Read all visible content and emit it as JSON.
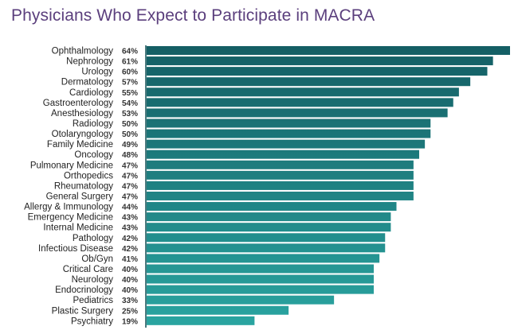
{
  "title": "Physicians Who Expect to Participate in MACRA",
  "chart_data": {
    "type": "bar",
    "orientation": "horizontal",
    "title": "Physicians Who Expect to Participate in MACRA",
    "xlabel": "",
    "ylabel": "",
    "categories": [
      "Ophthalmology",
      "Nephrology",
      "Urology",
      "Dermatology",
      "Cardiology",
      "Gastroenterology",
      "Anesthesiology",
      "Radiology",
      "Otolaryngology",
      "Family Medicine",
      "Oncology",
      "Pulmonary Medicine",
      "Orthopedics",
      "Rheumatology",
      "General Surgery",
      "Allergy & Immunology",
      "Emergency Medicine",
      "Internal Medicine",
      "Pathology",
      "Infectious Disease",
      "Ob/Gyn",
      "Critical Care",
      "Neurology",
      "Endocrinology",
      "Pediatrics",
      "Plastic Surgery",
      "Psychiatry"
    ],
    "values": [
      64,
      61,
      60,
      57,
      55,
      54,
      53,
      50,
      50,
      49,
      48,
      47,
      47,
      47,
      47,
      44,
      43,
      43,
      42,
      42,
      41,
      40,
      40,
      40,
      33,
      25,
      19
    ],
    "value_labels": [
      "64%",
      "61%",
      "60%",
      "57%",
      "55%",
      "54%",
      "53%",
      "50%",
      "50%",
      "49%",
      "48%",
      "47%",
      "47%",
      "47%",
      "47%",
      "44%",
      "43%",
      "43%",
      "42%",
      "42%",
      "41%",
      "40%",
      "40%",
      "40%",
      "33%",
      "25%",
      "19%"
    ],
    "xlim": [
      0,
      64
    ],
    "grid": false,
    "legend": "none",
    "colors": {
      "dark": "#145e64",
      "light": "#2aa5a1",
      "title": "#5b3f7d"
    }
  }
}
